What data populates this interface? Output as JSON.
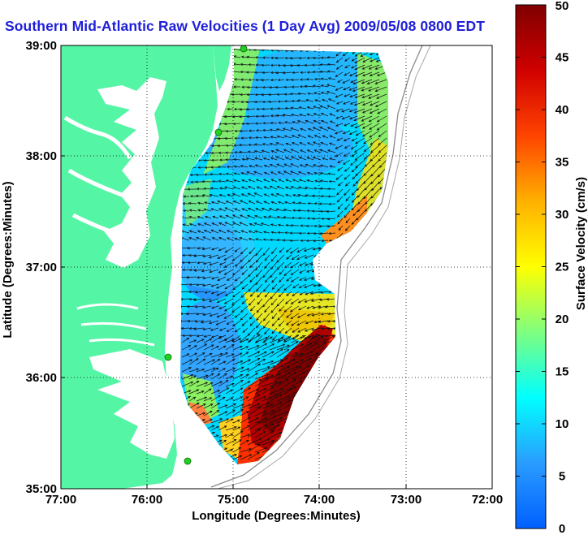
{
  "title": "Southern Mid-Atlantic Raw Velocities (1 Day Avg) 2009/05/08 0800 EDT",
  "x_axis": {
    "label": "Longitude (Degrees:Minutes)",
    "ticks": [
      "77:00",
      "76:00",
      "75:00",
      "74:00",
      "73:00",
      "72:00"
    ]
  },
  "y_axis": {
    "label": "Latitude (Degrees:Minutes)",
    "ticks": [
      "39:00",
      "38:00",
      "37:00",
      "36:00",
      "35:00"
    ]
  },
  "colorbar": {
    "label": "Surface Velocity (cm/s)",
    "ticks": [
      "0",
      "5",
      "10",
      "15",
      "20",
      "25",
      "30",
      "35",
      "40",
      "45",
      "50"
    ],
    "min": 0,
    "max": 50
  },
  "map": {
    "lon_range": [
      -77,
      -72
    ],
    "lat_range": [
      35,
      39
    ],
    "land_color": "#55f5a6",
    "water_color": "#ffffff",
    "grid": "dotted",
    "station_color": "#22d022",
    "station_count": 4
  }
}
